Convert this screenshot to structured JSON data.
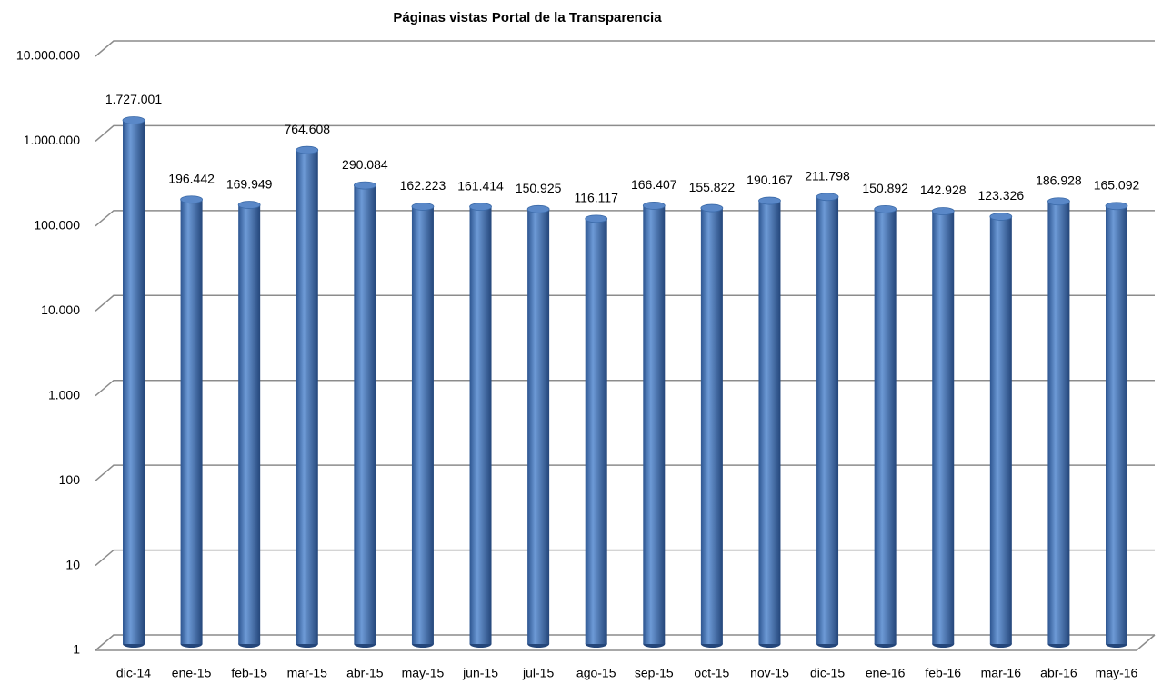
{
  "chart_data": {
    "type": "bar",
    "title": "Páginas vistas Portal de la Transparencia",
    "categories": [
      "dic-14",
      "ene-15",
      "feb-15",
      "mar-15",
      "abr-15",
      "may-15",
      "jun-15",
      "jul-15",
      "ago-15",
      "sep-15",
      "oct-15",
      "nov-15",
      "dic-15",
      "ene-16",
      "feb-16",
      "mar-16",
      "abr-16",
      "may-16"
    ],
    "values": [
      1727001,
      196442,
      169949,
      764608,
      290084,
      162223,
      161414,
      150925,
      116117,
      166407,
      155822,
      190167,
      211798,
      150892,
      142928,
      123326,
      186928,
      165092
    ],
    "value_labels": [
      "1.727.001",
      "196.442",
      "169.949",
      "764.608",
      "290.084",
      "162.223",
      "161.414",
      "150.925",
      "116.117",
      "166.407",
      "155.822",
      "190.167",
      "211.798",
      "150.892",
      "142.928",
      "123.326",
      "186.928",
      "165.092"
    ],
    "color": "#4a7bbf",
    "log_scale": true,
    "grid": true,
    "ylim": [
      1,
      10000000
    ],
    "yticks": [
      1,
      10,
      100,
      {
        "value": 1000,
        "label": "1.000"
      },
      {
        "value": 10000,
        "label": "10.000"
      },
      {
        "value": 100000,
        "label": "100.000"
      },
      {
        "value": 1000000,
        "label": "1.000.000"
      },
      {
        "value": 10000000,
        "label": "10.000.000"
      }
    ]
  }
}
